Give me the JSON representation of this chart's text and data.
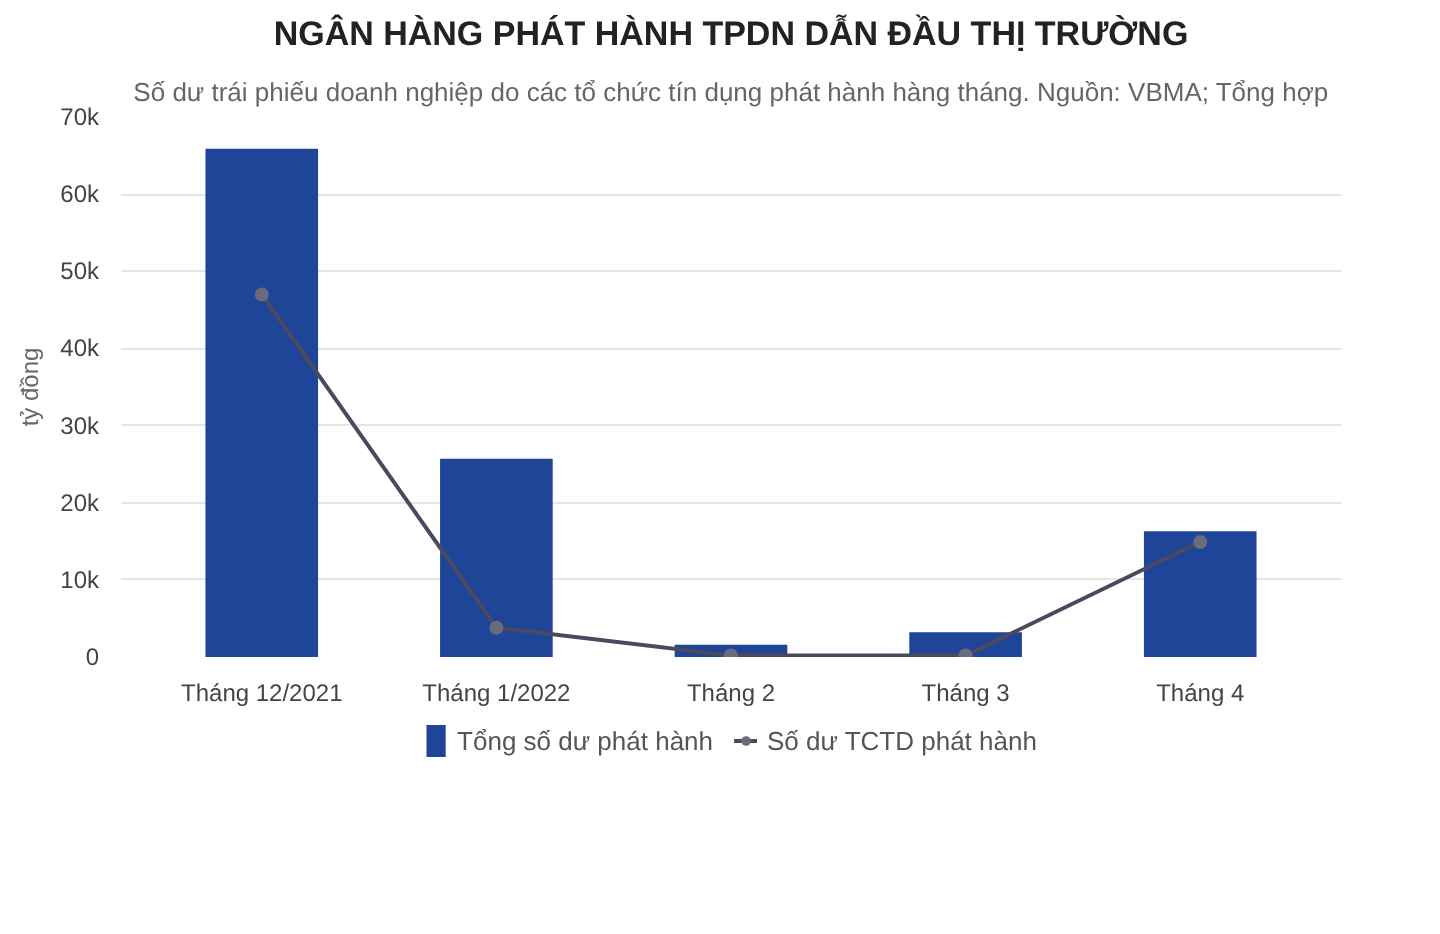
{
  "chart_data": {
    "type": "bar",
    "title": "NGÂN HÀNG PHÁT HÀNH TPDN DẪN ĐẦU THỊ TRƯỜNG",
    "subtitle": "Số dư trái phiếu doanh nghiệp do các tổ chức tín dụng phát hành hàng tháng. Nguồn: VBMA; Tổng hợp",
    "ylabel": "tỷ đồng",
    "categories": [
      "Tháng 12/2021",
      "Tháng 1/2022",
      "Tháng 2",
      "Tháng 3",
      "Tháng 4"
    ],
    "series": [
      {
        "name": "Tổng số dư phát hành",
        "type": "bar",
        "color": "#1f4599",
        "values": [
          65900,
          25700,
          1600,
          3200,
          16300
        ]
      },
      {
        "name": "Số dư TCTD phát hành",
        "type": "line",
        "color": "#4a4a5e",
        "marker": "circle",
        "values": [
          47000,
          3800,
          200,
          200,
          14900
        ]
      }
    ],
    "ylim": [
      0,
      70000
    ],
    "yticks": [
      {
        "value": 0,
        "label": "0"
      },
      {
        "value": 10000,
        "label": "10k"
      },
      {
        "value": 20000,
        "label": "20k"
      },
      {
        "value": 30000,
        "label": "30k"
      },
      {
        "value": 40000,
        "label": "40k"
      },
      {
        "value": 50000,
        "label": "50k"
      },
      {
        "value": 60000,
        "label": "60k"
      },
      {
        "value": 70000,
        "label": "70k"
      }
    ],
    "grid": "y",
    "legend": "bottom"
  }
}
